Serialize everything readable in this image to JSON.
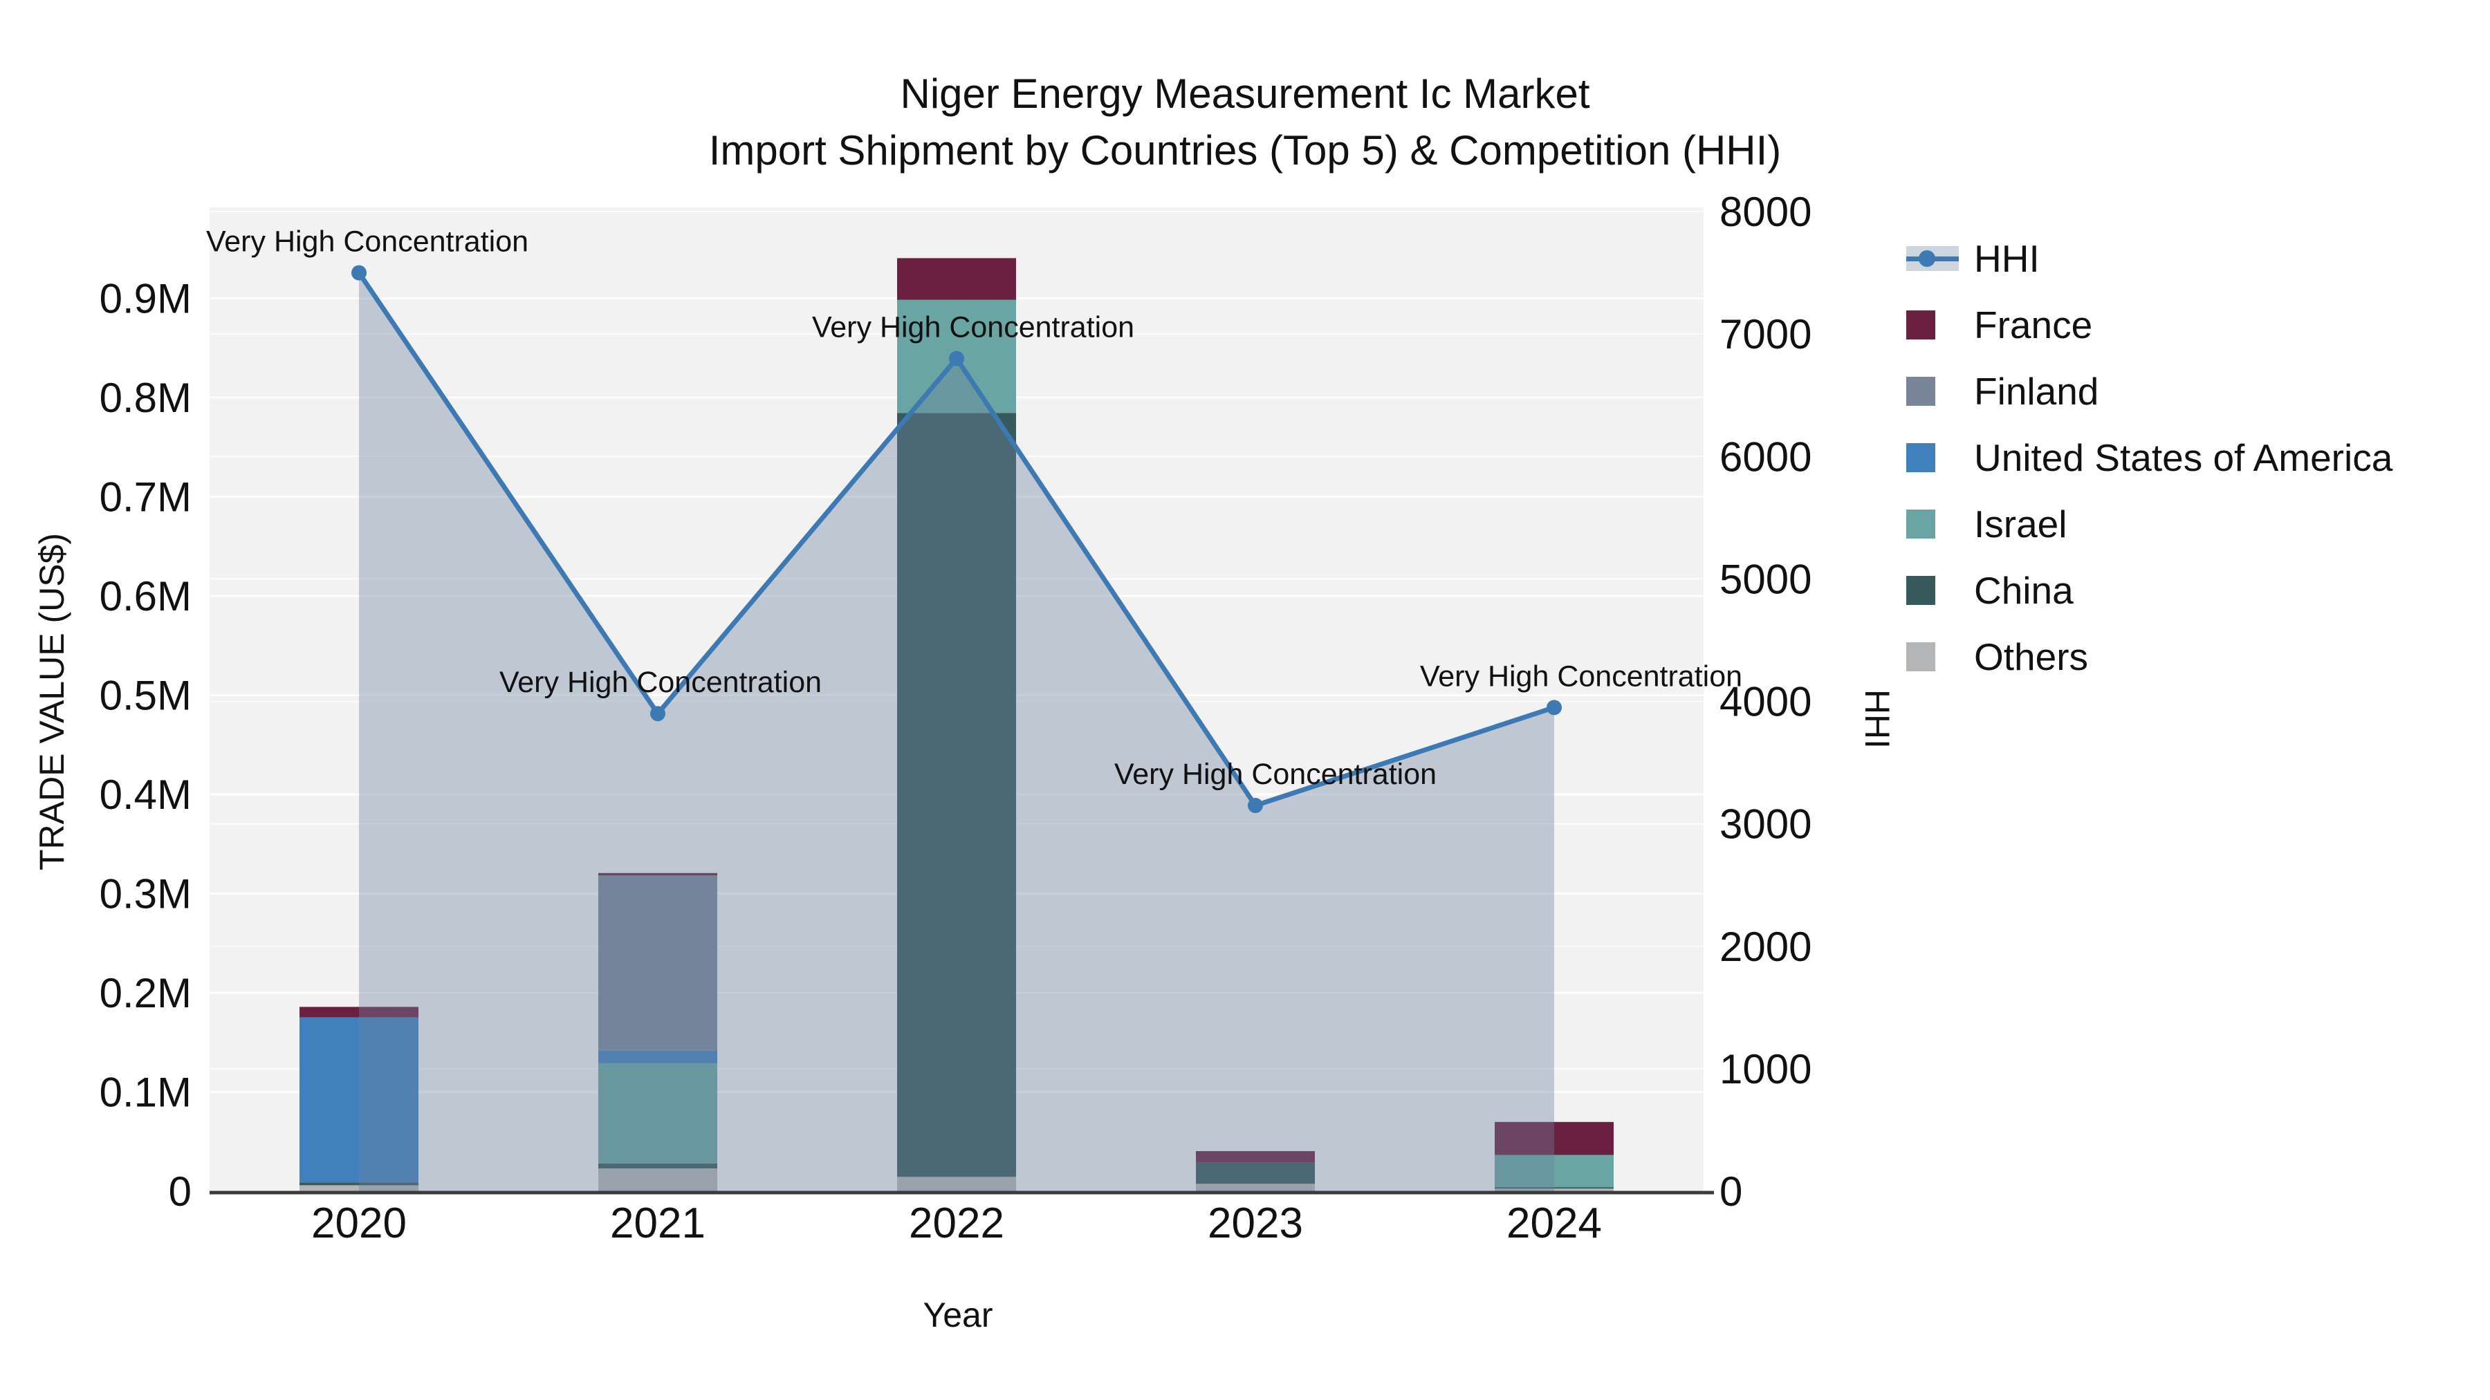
{
  "title": {
    "line1": "Niger Energy Measurement Ic Market",
    "line2": "Import Shipment by Countries (Top 5) & Competition (HHI)"
  },
  "chart_data": {
    "type": "bar",
    "subtype": "stacked bars with secondary-axis line+area",
    "categories": [
      "2020",
      "2021",
      "2022",
      "2023",
      "2024"
    ],
    "xlabel": "Year",
    "ylabel_left": "TRADE VALUE (US$)",
    "ylabel_right": "HHI",
    "ylim_left": [
      0,
      990000
    ],
    "ylim_right": [
      0,
      8000
    ],
    "grid": true,
    "legend_position": "right",
    "bar_series": [
      {
        "name": "Others",
        "color": "#b3b5b7",
        "values": [
          6000,
          23000,
          14500,
          7500,
          2600
        ]
      },
      {
        "name": "China",
        "color": "#375a5d",
        "values": [
          2800,
          5000,
          770000,
          21300,
          1500
        ]
      },
      {
        "name": "Israel",
        "color": "#6aa5a4",
        "values": [
          0,
          101000,
          114000,
          0,
          32500
        ]
      },
      {
        "name": "United States of America",
        "color": "#4080bc",
        "values": [
          166500,
          12700,
          0,
          0,
          0
        ]
      },
      {
        "name": "Finland",
        "color": "#7a8599",
        "values": [
          0,
          176600,
          0,
          0,
          0
        ]
      },
      {
        "name": "France",
        "color": "#6b2040",
        "values": [
          10500,
          2400,
          42000,
          11600,
          33200
        ]
      }
    ],
    "line_series": {
      "name": "HHI",
      "color": "#3d79b3",
      "area_color": "rgba(109,131,158,0.38)",
      "values": [
        7500,
        3900,
        6800,
        3150,
        3950
      ]
    },
    "annotations": [
      "Very High Concentration",
      "Very High Concentration",
      "Very High Concentration",
      "Very High Concentration",
      "Very High Concentration"
    ],
    "y_left_ticks": [
      "0",
      "0.1M",
      "0.2M",
      "0.3M",
      "0.4M",
      "0.5M",
      "0.6M",
      "0.7M",
      "0.8M",
      "0.9M"
    ],
    "y_right_ticks": [
      "0",
      "1000",
      "2000",
      "3000",
      "4000",
      "5000",
      "6000",
      "7000",
      "8000"
    ],
    "legend": [
      {
        "label": "HHI",
        "type": "line",
        "color": "#3d79b3"
      },
      {
        "label": "France",
        "type": "swatch",
        "color": "#6b2040"
      },
      {
        "label": "Finland",
        "type": "swatch",
        "color": "#7a8599"
      },
      {
        "label": "United States of America",
        "type": "swatch",
        "color": "#4080bc"
      },
      {
        "label": "Israel",
        "type": "swatch",
        "color": "#6aa5a4"
      },
      {
        "label": "China",
        "type": "swatch",
        "color": "#375a5d"
      },
      {
        "label": "Others",
        "type": "swatch",
        "color": "#b3b5b7"
      }
    ],
    "colors": {
      "plot_background": "#f2f2f3",
      "gridline": "#ffffff",
      "axis_line": "#3b3b3b",
      "text": "#111111"
    }
  }
}
